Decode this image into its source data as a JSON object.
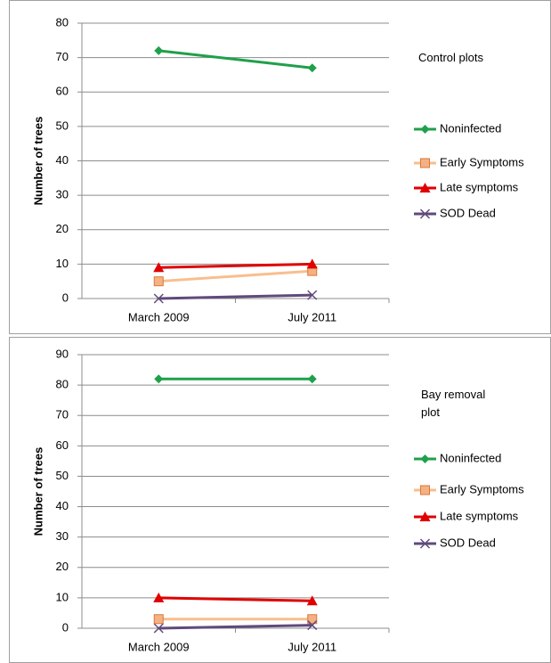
{
  "chart_data": [
    {
      "type": "line",
      "title": "Control plots",
      "y_label": "Number of trees",
      "categories": [
        "March 2009",
        "July 2011"
      ],
      "ylim": [
        0,
        80
      ],
      "yticks": [
        0,
        10,
        20,
        30,
        40,
        50,
        60,
        70,
        80
      ],
      "grid": true,
      "series": [
        {
          "name": "Noninfected",
          "color": "#1fa04b",
          "marker": "diamond",
          "values": [
            72,
            67
          ]
        },
        {
          "name": "Early Symptoms",
          "color": "#f9be8e",
          "marker": "square",
          "values": [
            5,
            8
          ]
        },
        {
          "name": "Late symptoms",
          "color": "#e00000",
          "marker": "triangle",
          "values": [
            9,
            10
          ]
        },
        {
          "name": "SOD Dead",
          "color": "#604a7b",
          "marker": "x",
          "values": [
            0,
            1
          ]
        }
      ]
    },
    {
      "type": "line",
      "title": "Bay removal plot",
      "y_label": "Number of trees",
      "categories": [
        "March 2009",
        "July 2011"
      ],
      "ylim": [
        0,
        90
      ],
      "yticks": [
        0,
        10,
        20,
        30,
        40,
        50,
        60,
        70,
        80,
        90
      ],
      "grid": true,
      "series": [
        {
          "name": "Noninfected",
          "color": "#1fa04b",
          "marker": "diamond",
          "values": [
            82,
            82
          ]
        },
        {
          "name": "Early Symptoms",
          "color": "#f9be8e",
          "marker": "square",
          "values": [
            3,
            3
          ]
        },
        {
          "name": "Late symptoms",
          "color": "#e00000",
          "marker": "triangle",
          "values": [
            10,
            9
          ]
        },
        {
          "name": "SOD Dead",
          "color": "#604a7b",
          "marker": "x",
          "values": [
            0,
            1
          ]
        }
      ]
    }
  ]
}
